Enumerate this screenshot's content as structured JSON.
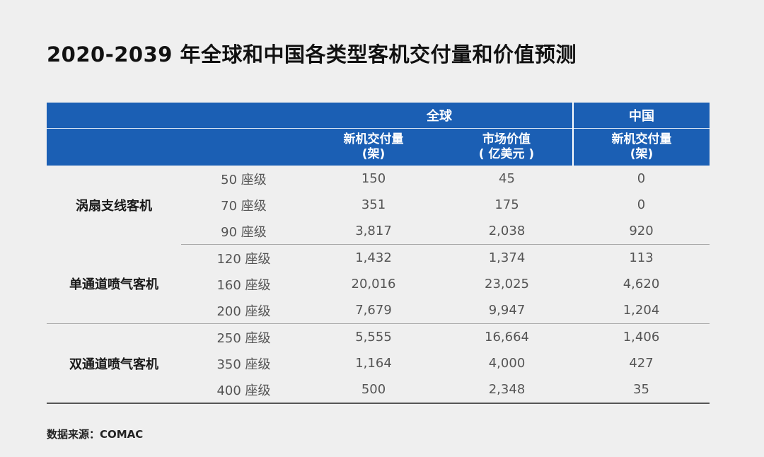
{
  "title": "2020-2039 年全球和中国各类型客机交付量和价值预测",
  "header": {
    "global": "全球",
    "china": "中国",
    "global_deliveries_line1": "新机交付量",
    "global_deliveries_line2": "(架)",
    "global_value_line1": "市场价值",
    "global_value_line2": "( 亿美元 )",
    "china_deliveries_line1": "新机交付量",
    "china_deliveries_line2": "(架)"
  },
  "groups": [
    {
      "category": "涡扇支线客机",
      "rows": [
        {
          "seats": "50 座级",
          "global_deliveries": "150",
          "global_value": "45",
          "china_deliveries": "0"
        },
        {
          "seats": "70 座级",
          "global_deliveries": "351",
          "global_value": "175",
          "china_deliveries": "0"
        },
        {
          "seats": "90 座级",
          "global_deliveries": "3,817",
          "global_value": "2,038",
          "china_deliveries": "920"
        }
      ]
    },
    {
      "category": "单通道喷气客机",
      "rows": [
        {
          "seats": "120 座级",
          "global_deliveries": "1,432",
          "global_value": "1,374",
          "china_deliveries": "113"
        },
        {
          "seats": "160 座级",
          "global_deliveries": "20,016",
          "global_value": "23,025",
          "china_deliveries": "4,620"
        },
        {
          "seats": "200 座级",
          "global_deliveries": "7,679",
          "global_value": "9,947",
          "china_deliveries": "1,204"
        }
      ]
    },
    {
      "category": "双通道喷气客机",
      "rows": [
        {
          "seats": "250 座级",
          "global_deliveries": "5,555",
          "global_value": "16,664",
          "china_deliveries": "1,406"
        },
        {
          "seats": "350 座级",
          "global_deliveries": "1,164",
          "global_value": "4,000",
          "china_deliveries": "427"
        },
        {
          "seats": "400 座级",
          "global_deliveries": "500",
          "global_value": "2,348",
          "china_deliveries": "35"
        }
      ]
    }
  ],
  "source": "数据来源：COMAC",
  "colors": {
    "header_bg": "#1b5fb4",
    "page_bg": "#efefef"
  }
}
